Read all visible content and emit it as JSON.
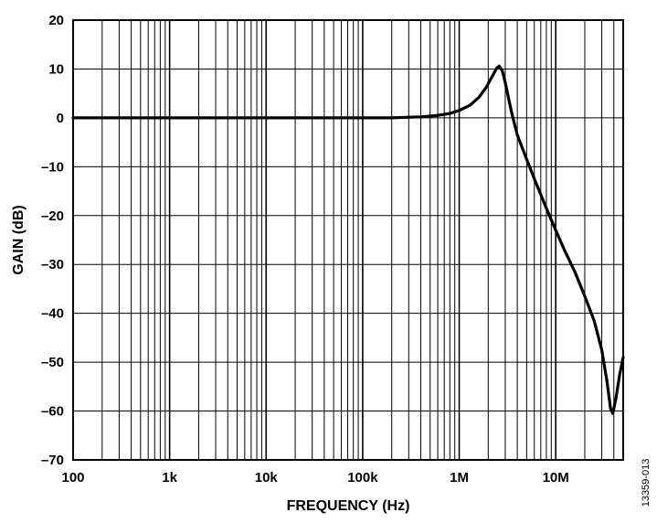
{
  "chart_data": {
    "type": "line",
    "xlabel": "FREQUENCY (Hz)",
    "ylabel": "GAIN (dB)",
    "x_scale": "log",
    "xlim": [
      100,
      50000000
    ],
    "ylim": [
      -70,
      20
    ],
    "x_ticks": [
      {
        "value": 100,
        "label": "100"
      },
      {
        "value": 1000,
        "label": "1k"
      },
      {
        "value": 10000,
        "label": "10k"
      },
      {
        "value": 100000,
        "label": "100k"
      },
      {
        "value": 1000000,
        "label": "1M"
      },
      {
        "value": 10000000,
        "label": "10M"
      }
    ],
    "y_ticks": [
      {
        "value": 20,
        "label": "20"
      },
      {
        "value": 10,
        "label": "10"
      },
      {
        "value": 0,
        "label": "0"
      },
      {
        "value": -10,
        "label": "–10"
      },
      {
        "value": -20,
        "label": "–20"
      },
      {
        "value": -30,
        "label": "–30"
      },
      {
        "value": -40,
        "label": "–40"
      },
      {
        "value": -50,
        "label": "–50"
      },
      {
        "value": -60,
        "label": "–60"
      },
      {
        "value": -70,
        "label": "–70"
      }
    ],
    "grid": true,
    "series": [
      {
        "color": "#000000",
        "points": [
          [
            100,
            0
          ],
          [
            1000,
            0
          ],
          [
            10000,
            0
          ],
          [
            100000,
            0
          ],
          [
            200000,
            0
          ],
          [
            400000,
            0.2
          ],
          [
            600000,
            0.5
          ],
          [
            800000,
            0.9
          ],
          [
            1000000,
            1.5
          ],
          [
            1300000,
            2.6
          ],
          [
            1600000,
            4.2
          ],
          [
            1900000,
            6.2
          ],
          [
            2200000,
            8.5
          ],
          [
            2450000,
            10.2
          ],
          [
            2600000,
            10.6
          ],
          [
            2800000,
            9.6
          ],
          [
            3000000,
            7.2
          ],
          [
            3500000,
            1.0
          ],
          [
            4000000,
            -3.5
          ],
          [
            5000000,
            -8.5
          ],
          [
            6300000,
            -13.5
          ],
          [
            8000000,
            -18.5
          ],
          [
            10000000,
            -23.0
          ],
          [
            12600000,
            -27.5
          ],
          [
            15800000,
            -31.5
          ],
          [
            20000000,
            -36.5
          ],
          [
            25000000,
            -41.5
          ],
          [
            30000000,
            -47.5
          ],
          [
            34000000,
            -54.0
          ],
          [
            37000000,
            -59.5
          ],
          [
            39000000,
            -60.5
          ],
          [
            42000000,
            -57.5
          ],
          [
            46000000,
            -52.5
          ],
          [
            50000000,
            -49.0
          ]
        ]
      }
    ]
  },
  "figure_id": "13359-013"
}
